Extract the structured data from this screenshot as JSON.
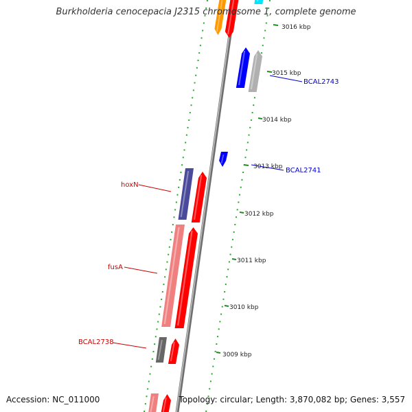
{
  "title": "Burkholderia cenocepacia J2315 chromosome 1, complete genome",
  "accession": "Accession: NC_011000",
  "topology": "Topology: circular; Length: 3,870,082 bp; Genes: 3,557",
  "ticks": [
    {
      "label": "3016 kbp"
    },
    {
      "label": "3015 kbp"
    },
    {
      "label": "3014 kbp"
    },
    {
      "label": "3013 kbp"
    },
    {
      "label": "3012 kbp"
    },
    {
      "label": "3011 kbp"
    },
    {
      "label": "3010 kbp"
    },
    {
      "label": "3009 kbp"
    }
  ],
  "gene_labels": [
    {
      "text": "BCAL2743",
      "color": "#0000cc"
    },
    {
      "text": "BCAL2741",
      "color": "#0000cc"
    },
    {
      "text": "hoxN",
      "color": "#cc0000"
    },
    {
      "text": "fusA",
      "color": "#cc0000"
    },
    {
      "text": "BCAL2738",
      "color": "#cc0000"
    }
  ],
  "colors": {
    "backbone": "#9a9a9a",
    "dotted_ring": "#22aa22",
    "tick_mark": "#228822",
    "gene_blue": "#0000ff",
    "gene_red": "#ff0000",
    "gene_pink": "#f08080",
    "gene_navy": "#4a4a9a",
    "gene_grey": "#666666",
    "gene_lightgrey": "#b0b0b0",
    "gene_orange": "#ff9900",
    "gene_cyan": "#00e5ff"
  }
}
